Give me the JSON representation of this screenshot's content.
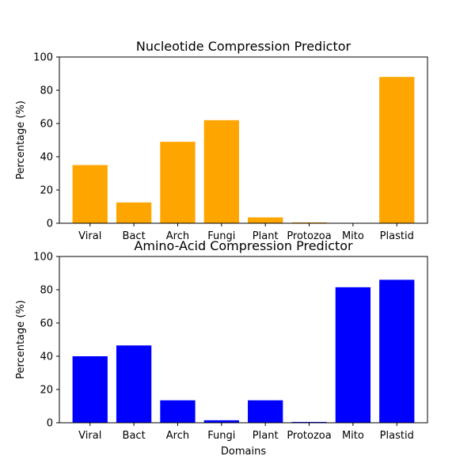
{
  "figure": {
    "xlabel": "Domains"
  },
  "chart_data": [
    {
      "type": "bar",
      "title": "Nucleotide Compression Predictor",
      "xlabel": "",
      "ylabel": "Percentage (%)",
      "categories": [
        "Viral",
        "Bact",
        "Arch",
        "Fungi",
        "Plant",
        "Protozoa",
        "Mito",
        "Plastid"
      ],
      "values": [
        35,
        12.5,
        49,
        62,
        3.5,
        0.5,
        0,
        88
      ],
      "ylim": [
        0,
        100
      ],
      "yticks": [
        0,
        20,
        40,
        60,
        80,
        100
      ],
      "color": "#FFA500",
      "grid": false
    },
    {
      "type": "bar",
      "title": "Amino-Acid Compression Predictor",
      "xlabel": "Domains",
      "ylabel": "Percentage (%)",
      "categories": [
        "Viral",
        "Bact",
        "Arch",
        "Fungi",
        "Plant",
        "Protozoa",
        "Mito",
        "Plastid"
      ],
      "values": [
        40,
        46.5,
        13.5,
        1.5,
        13.5,
        0.5,
        81.5,
        86
      ],
      "ylim": [
        0,
        100
      ],
      "yticks": [
        0,
        20,
        40,
        60,
        80,
        100
      ],
      "color": "#0000FF",
      "grid": false
    }
  ]
}
